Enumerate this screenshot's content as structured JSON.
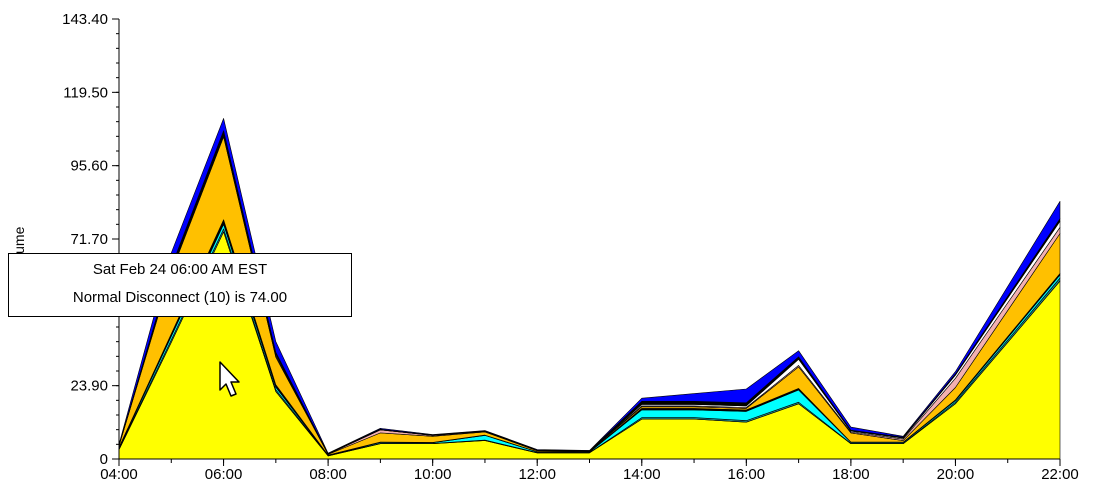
{
  "chart_data": {
    "type": "area",
    "stacked": true,
    "xlabel": "",
    "ylabel": "Volume",
    "x": [
      "04:00",
      "05:00",
      "06:00",
      "07:00",
      "08:00",
      "09:00",
      "10:00",
      "11:00",
      "12:00",
      "13:00",
      "14:00",
      "15:00",
      "16:00",
      "17:00",
      "18:00",
      "19:00",
      "20:00",
      "22:00"
    ],
    "x_tick_labels": [
      "04:00",
      "06:00",
      "08:00",
      "10:00",
      "12:00",
      "14:00",
      "16:00",
      "18:00",
      "20:00",
      "22:00"
    ],
    "y_tick_labels": [
      "0",
      "23.90",
      "71.70",
      "95.60",
      "119.50",
      "143.40"
    ],
    "y_ticks": [
      0,
      23.9,
      71.7,
      95.6,
      119.5,
      143.4
    ],
    "ylim": [
      0,
      143.4
    ],
    "grid": false,
    "series": [
      {
        "color": "#ffff00",
        "values": [
          3,
          38,
          74,
          22,
          1,
          5,
          5,
          6,
          2,
          2,
          13,
          13,
          12,
          18,
          5,
          5,
          18,
          58
        ]
      },
      {
        "color": "#228b8b",
        "values": [
          0.3,
          0.8,
          1,
          0.6,
          0.1,
          0.1,
          0.1,
          0.2,
          0.1,
          0.1,
          0.5,
          0.5,
          0.5,
          0.5,
          0.1,
          0.1,
          0.5,
          1
        ]
      },
      {
        "color": "#00ffff",
        "values": [
          0.3,
          1.2,
          1.5,
          0.8,
          0.1,
          0.3,
          0.2,
          1.5,
          0.2,
          0.1,
          2.5,
          2.5,
          3,
          4,
          0.3,
          0.3,
          0.5,
          1
        ]
      },
      {
        "color": "#000000",
        "values": [
          0.2,
          0.8,
          1.5,
          0.8,
          0.1,
          0.1,
          0.1,
          0.1,
          0.1,
          0.1,
          0.5,
          0.5,
          0.5,
          0.5,
          0.1,
          0.1,
          0.3,
          0.5
        ]
      },
      {
        "color": "#ffc000",
        "values": [
          0.5,
          20,
          27,
          9,
          0.2,
          3,
          2,
          1,
          0.3,
          0.2,
          0.5,
          0.5,
          0.5,
          7,
          3,
          0.5,
          4,
          13
        ]
      },
      {
        "color": "#f4b0b0",
        "values": [
          0,
          0.5,
          0.5,
          0.5,
          0.1,
          1,
          0.3,
          0.2,
          0.1,
          0.1,
          0.3,
          0.3,
          0.3,
          0.5,
          0.3,
          0.5,
          3,
          2
        ]
      },
      {
        "color": "#ffffff",
        "values": [
          0,
          0.5,
          0.5,
          0.5,
          0,
          0,
          0,
          0,
          0,
          0,
          0.5,
          0.5,
          0.5,
          2,
          0.3,
          0.3,
          1,
          2
        ]
      },
      {
        "color": "#000000",
        "values": [
          0.2,
          0.8,
          1,
          0.6,
          0.1,
          0.2,
          0.1,
          0.1,
          0.1,
          0.1,
          1,
          1,
          1,
          0.8,
          0.3,
          0.3,
          0.4,
          0.8
        ]
      },
      {
        "color": "#0000ff",
        "values": [
          0.3,
          4.6,
          4,
          3.5,
          0.2,
          0.3,
          0.2,
          0.2,
          0.2,
          0.1,
          1,
          2.5,
          4.5,
          2,
          1,
          0.3,
          0.8,
          5.7
        ]
      }
    ],
    "tooltip": {
      "title": "Sat Feb 24 06:00 AM EST",
      "text": "Normal Disconnect (10)  is 74.00"
    }
  }
}
